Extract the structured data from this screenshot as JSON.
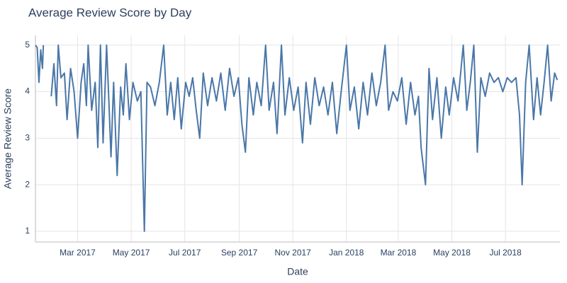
{
  "chart_data": {
    "type": "line",
    "title": "Average Review Score by Day",
    "x_label": "Date",
    "y_label": "Average Review Score",
    "color": "#4a77a8",
    "grid": true,
    "xlim": [
      "2017-01-12",
      "2018-09-01"
    ],
    "xticks": [
      {
        "value": "2017-03-01",
        "label": "Mar 2017"
      },
      {
        "value": "2017-05-01",
        "label": "May 2017"
      },
      {
        "value": "2017-07-01",
        "label": "Jul 2017"
      },
      {
        "value": "2017-09-01",
        "label": "Sep 2017"
      },
      {
        "value": "2017-11-01",
        "label": "Nov 2017"
      },
      {
        "value": "2018-01-01",
        "label": "Jan 2018"
      },
      {
        "value": "2018-03-01",
        "label": "Mar 2018"
      },
      {
        "value": "2018-05-01",
        "label": "May 2018"
      },
      {
        "value": "2018-07-01",
        "label": "Jul 2018"
      }
    ],
    "ylim": [
      0.77,
      5.21
    ],
    "yticks": [
      1,
      2,
      3,
      4,
      5
    ],
    "x": [
      "2017-01-12",
      "2017-01-14",
      "2017-01-16",
      "2017-01-18",
      "2017-01-20",
      "2017-01-21",
      "2017-01-22",
      "2017-01-30",
      "2017-02-02",
      "2017-02-05",
      "2017-02-07",
      "2017-02-10",
      "2017-02-14",
      "2017-02-17",
      "2017-02-21",
      "2017-02-25",
      "2017-03-01",
      "2017-03-05",
      "2017-03-08",
      "2017-03-11",
      "2017-03-13",
      "2017-03-17",
      "2017-03-21",
      "2017-03-24",
      "2017-03-27",
      "2017-03-30",
      "2017-04-03",
      "2017-04-06",
      "2017-04-08",
      "2017-04-11",
      "2017-04-15",
      "2017-04-19",
      "2017-04-22",
      "2017-04-25",
      "2017-04-29",
      "2017-05-03",
      "2017-05-08",
      "2017-05-12",
      "2017-05-16",
      "2017-05-19",
      "2017-05-23",
      "2017-05-28",
      "2017-06-02",
      "2017-06-07",
      "2017-06-11",
      "2017-06-15",
      "2017-06-19",
      "2017-06-23",
      "2017-06-27",
      "2017-07-02",
      "2017-07-06",
      "2017-07-10",
      "2017-07-14",
      "2017-07-18",
      "2017-07-22",
      "2017-07-27",
      "2017-08-01",
      "2017-08-06",
      "2017-08-11",
      "2017-08-16",
      "2017-08-21",
      "2017-08-26",
      "2017-08-31",
      "2017-09-04",
      "2017-09-08",
      "2017-09-12",
      "2017-09-17",
      "2017-09-21",
      "2017-09-26",
      "2017-10-01",
      "2017-10-05",
      "2017-10-10",
      "2017-10-14",
      "2017-10-19",
      "2017-10-23",
      "2017-10-28",
      "2017-11-02",
      "2017-11-07",
      "2017-11-12",
      "2017-11-16",
      "2017-11-21",
      "2017-11-26",
      "2017-12-01",
      "2017-12-06",
      "2017-12-11",
      "2017-12-16",
      "2017-12-21",
      "2017-12-26",
      "2018-01-01",
      "2018-01-05",
      "2018-01-10",
      "2018-01-15",
      "2018-01-20",
      "2018-01-25",
      "2018-01-30",
      "2018-02-04",
      "2018-02-09",
      "2018-02-14",
      "2018-02-18",
      "2018-02-23",
      "2018-02-28",
      "2018-03-05",
      "2018-03-10",
      "2018-03-15",
      "2018-03-20",
      "2018-03-24",
      "2018-03-27",
      "2018-04-01",
      "2018-04-05",
      "2018-04-09",
      "2018-04-14",
      "2018-04-19",
      "2018-04-24",
      "2018-04-28",
      "2018-05-03",
      "2018-05-08",
      "2018-05-14",
      "2018-05-18",
      "2018-05-22",
      "2018-05-26",
      "2018-05-30",
      "2018-06-03",
      "2018-06-08",
      "2018-06-13",
      "2018-06-18",
      "2018-06-23",
      "2018-06-28",
      "2018-07-03",
      "2018-07-08",
      "2018-07-13",
      "2018-07-17",
      "2018-07-20",
      "2018-07-24",
      "2018-07-28",
      "2018-08-02",
      "2018-08-06",
      "2018-08-10",
      "2018-08-14",
      "2018-08-18",
      "2018-08-22",
      "2018-08-26",
      "2018-08-29"
    ],
    "values": [
      5.0,
      4.95,
      4.2,
      4.9,
      4.5,
      5.0,
      null,
      3.9,
      4.6,
      3.7,
      5.0,
      4.3,
      4.4,
      3.4,
      4.5,
      4.0,
      3.0,
      4.2,
      4.6,
      3.7,
      5.0,
      3.6,
      4.2,
      2.8,
      5.0,
      2.9,
      5.0,
      3.6,
      2.6,
      4.2,
      2.2,
      4.1,
      3.5,
      4.6,
      3.4,
      4.2,
      3.8,
      4.0,
      1.0,
      4.2,
      4.1,
      3.7,
      4.2,
      5.0,
      3.5,
      4.2,
      3.4,
      4.3,
      3.2,
      4.2,
      3.9,
      4.3,
      3.6,
      3.0,
      4.4,
      3.7,
      4.3,
      3.8,
      4.4,
      3.6,
      4.5,
      3.9,
      4.3,
      3.3,
      2.7,
      4.3,
      3.5,
      4.2,
      3.7,
      5.0,
      3.6,
      4.2,
      3.1,
      5.0,
      3.5,
      4.3,
      3.6,
      4.1,
      2.9,
      4.2,
      3.3,
      4.3,
      3.7,
      4.1,
      3.5,
      4.2,
      3.1,
      4.0,
      5.0,
      3.6,
      4.1,
      3.2,
      4.2,
      3.5,
      4.4,
      3.7,
      4.2,
      5.0,
      3.6,
      4.0,
      3.8,
      4.3,
      3.3,
      4.2,
      3.5,
      3.9,
      2.8,
      2.0,
      4.5,
      3.4,
      4.3,
      3.0,
      4.1,
      3.5,
      4.3,
      3.8,
      5.0,
      3.6,
      4.2,
      5.0,
      2.7,
      4.3,
      3.9,
      4.4,
      4.2,
      4.3,
      4.0,
      4.3,
      4.2,
      4.3,
      3.5,
      2.0,
      4.2,
      5.0,
      3.4,
      4.3,
      3.5,
      4.2,
      5.0,
      3.8,
      4.4,
      4.25
    ]
  }
}
